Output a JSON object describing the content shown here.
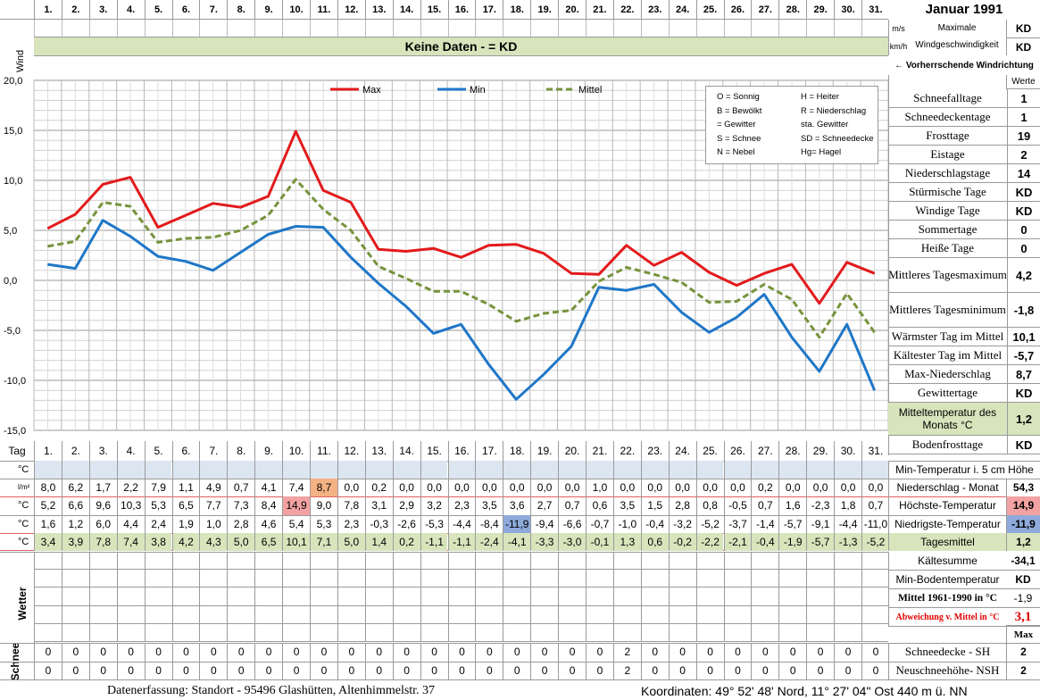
{
  "header": {
    "title": "Januar 1991",
    "days": [
      "1.",
      "2.",
      "3.",
      "4.",
      "5.",
      "6.",
      "7.",
      "8.",
      "9.",
      "10.",
      "11.",
      "12.",
      "13.",
      "14.",
      "15.",
      "16.",
      "17.",
      "18.",
      "19.",
      "20.",
      "21.",
      "22.",
      "23.",
      "24.",
      "25.",
      "26.",
      "27.",
      "28.",
      "29.",
      "30.",
      "31."
    ]
  },
  "wind": {
    "label": "Wind",
    "unit_ms": "m/s",
    "unit_kmh": "km/h",
    "no_data": "Keine Daten -  = KD",
    "max_label": "Maximale Windgeschwindigkeit",
    "max_ms": "KD",
    "max_kmh": "KD",
    "direction_label": "←  Vorherrschende Windrichtung"
  },
  "legend_codes": [
    {
      "code": "O = Sonnig",
      "code2": "H = Heiter"
    },
    {
      "code": "B = Bewölkt",
      "code2": "R = Niederschlag"
    },
    {
      "code": "= Gewitter",
      "code2": "sta. Gewitter"
    },
    {
      "code": "S = Schnee",
      "code2": "SD = Schneedecke"
    },
    {
      "code": "N = Nebel",
      "code2": "Hg= Hagel"
    }
  ],
  "stats_header": "Werte",
  "stats": [
    {
      "label": "Schneefalltage",
      "value": "1"
    },
    {
      "label": "Schneedeckentage",
      "value": "1"
    },
    {
      "label": "Frosttage",
      "value": "19"
    },
    {
      "label": "Eistage",
      "value": "2"
    },
    {
      "label": "Niederschlagstage",
      "value": "14"
    },
    {
      "label": "Stürmische Tage",
      "value": "KD"
    },
    {
      "label": "Windige Tage",
      "value": "KD"
    },
    {
      "label": "Sommertage",
      "value": "0"
    },
    {
      "label": "Heiße Tage",
      "value": "0"
    },
    {
      "label": "Mittleres Tagesmaximum",
      "value": "4,2"
    },
    {
      "label": "Mittleres Tagesminimum",
      "value": "-1,8"
    },
    {
      "label": "Wärmster Tag im Mittel",
      "value": "10,1"
    },
    {
      "label": "Kältester Tag im Mittel",
      "value": "-5,7"
    },
    {
      "label": "Max-Niederschlag",
      "value": "8,7"
    },
    {
      "label": "Gewittertage",
      "value": "KD"
    },
    {
      "label": "Mitteltemperatur des Monats °C",
      "value": "1,2"
    },
    {
      "label": "Bodenfrosttage",
      "value": "KD"
    }
  ],
  "chart_data": {
    "type": "line",
    "categories": [
      "1",
      "2",
      "3",
      "4",
      "5",
      "6",
      "7",
      "8",
      "9",
      "10",
      "11",
      "12",
      "13",
      "14",
      "15",
      "16",
      "17",
      "18",
      "19",
      "20",
      "21",
      "22",
      "23",
      "24",
      "25",
      "26",
      "27",
      "28",
      "29",
      "30",
      "31"
    ],
    "series": [
      {
        "name": "Max",
        "color": "#e31a1c",
        "values": [
          5.2,
          6.6,
          9.6,
          10.3,
          5.3,
          6.5,
          7.7,
          7.3,
          8.4,
          14.9,
          9.0,
          7.8,
          3.1,
          2.9,
          3.2,
          2.3,
          3.5,
          3.6,
          2.7,
          0.7,
          0.6,
          3.5,
          1.5,
          2.8,
          0.8,
          -0.5,
          0.7,
          1.6,
          -2.3,
          1.8,
          0.7
        ]
      },
      {
        "name": "Min",
        "color": "#1f77c8",
        "values": [
          1.6,
          1.2,
          6.0,
          4.4,
          2.4,
          1.9,
          1.0,
          2.8,
          4.6,
          5.4,
          5.3,
          2.3,
          -0.3,
          -2.6,
          -5.3,
          -4.4,
          -8.4,
          -11.9,
          -9.4,
          -6.6,
          -0.7,
          -1.0,
          -0.4,
          -3.2,
          -5.2,
          -3.7,
          -1.4,
          -5.7,
          -9.1,
          -4.4,
          -11.0
        ]
      },
      {
        "name": "Mittel",
        "color": "#77933c",
        "dashed": true,
        "values": [
          3.4,
          3.9,
          7.8,
          7.4,
          3.8,
          4.2,
          4.3,
          5.0,
          6.5,
          10.1,
          7.1,
          5.0,
          1.4,
          0.2,
          -1.1,
          -1.1,
          -2.4,
          -4.1,
          -3.3,
          -3.0,
          -0.1,
          1.3,
          0.6,
          -0.2,
          -2.2,
          -2.1,
          -0.4,
          -1.9,
          -5.7,
          -1.3,
          -5.2
        ]
      }
    ],
    "ylim": [
      -15,
      20
    ],
    "yticks": [
      "20,0",
      "15,0",
      "10,0",
      "5,0",
      "0,0",
      "-5,0",
      "-10,0",
      "-15,0"
    ],
    "ytick_values": [
      20,
      15,
      10,
      5,
      0,
      -5,
      -10,
      -15
    ]
  },
  "table": {
    "tag_label": "Tag",
    "rows": [
      {
        "unit": "°C",
        "label": "Min-Temperatur i. 5 cm Höhe",
        "total": "",
        "values": [
          "",
          "",
          "",
          "",
          "",
          "",
          "",
          "",
          "",
          "",
          "",
          "",
          "",
          "",
          "",
          "",
          "",
          "",
          "",
          "",
          "",
          "",
          "",
          "",
          "",
          "",
          "",
          "",
          "",
          "",
          ""
        ]
      },
      {
        "unit": "l/m²",
        "label": "Niederschlag - Monat",
        "total": "54,3",
        "values": [
          "8,0",
          "6,2",
          "1,7",
          "2,2",
          "7,9",
          "1,1",
          "4,9",
          "0,7",
          "4,1",
          "7,4",
          "8,7",
          "0,0",
          "0,2",
          "0,0",
          "0,0",
          "0,0",
          "0,0",
          "0,0",
          "0,0",
          "0,0",
          "1,0",
          "0,0",
          "0,0",
          "0,0",
          "0,0",
          "0,0",
          "0,2",
          "0,0",
          "0,0",
          "0,0",
          "0,0"
        ]
      },
      {
        "unit": "°C",
        "label": "Höchste-Temperatur",
        "total": "14,9",
        "values": [
          "5,2",
          "6,6",
          "9,6",
          "10,3",
          "5,3",
          "6,5",
          "7,7",
          "7,3",
          "8,4",
          "14,9",
          "9,0",
          "7,8",
          "3,1",
          "2,9",
          "3,2",
          "2,3",
          "3,5",
          "3,6",
          "2,7",
          "0,7",
          "0,6",
          "3,5",
          "1,5",
          "2,8",
          "0,8",
          "-0,5",
          "0,7",
          "1,6",
          "-2,3",
          "1,8",
          "0,7"
        ]
      },
      {
        "unit": "°C",
        "label": "Niedrigste-Temperatur",
        "total": "-11,9",
        "values": [
          "1,6",
          "1,2",
          "6,0",
          "4,4",
          "2,4",
          "1,9",
          "1,0",
          "2,8",
          "4,6",
          "5,4",
          "5,3",
          "2,3",
          "-0,3",
          "-2,6",
          "-5,3",
          "-4,4",
          "-8,4",
          "-11,9",
          "-9,4",
          "-6,6",
          "-0,7",
          "-1,0",
          "-0,4",
          "-3,2",
          "-5,2",
          "-3,7",
          "-1,4",
          "-5,7",
          "-9,1",
          "-4,4",
          "-11,0"
        ]
      },
      {
        "unit": "°C",
        "label": "Tagesmittel",
        "total": "1,2",
        "values": [
          "3,4",
          "3,9",
          "7,8",
          "7,4",
          "3,8",
          "4,2",
          "4,3",
          "5,0",
          "6,5",
          "10,1",
          "7,1",
          "5,0",
          "1,4",
          "0,2",
          "-1,1",
          "-1,1",
          "-2,4",
          "-4,1",
          "-3,3",
          "-3,0",
          "-0,1",
          "1,3",
          "0,6",
          "-0,2",
          "-2,2",
          "-2,1",
          "-0,4",
          "-1,9",
          "-5,7",
          "-1,3",
          "-5,2"
        ]
      }
    ]
  },
  "extra": [
    {
      "label": "Kältesumme",
      "value": "-34,1"
    },
    {
      "label": "Min-Bodentemperatur",
      "value": "KD"
    },
    {
      "label": "Mittel 1961-1990 in °C",
      "value": "-1,9"
    },
    {
      "label": "Abweichung v. Mittel in °C",
      "value": "3,1"
    }
  ],
  "wetter_label": "Wetter",
  "schnee_label": "Schnee",
  "max_label": "Max",
  "snow_rows": [
    {
      "label": "Schneedecke -   SH",
      "max": "2",
      "values": [
        "0",
        "0",
        "0",
        "0",
        "0",
        "0",
        "0",
        "0",
        "0",
        "0",
        "0",
        "0",
        "0",
        "0",
        "0",
        "0",
        "0",
        "0",
        "0",
        "0",
        "0",
        "2",
        "0",
        "0",
        "0",
        "0",
        "0",
        "0",
        "0",
        "0",
        "0"
      ]
    },
    {
      "label": "Neuschneehöhe- NSH",
      "max": "2",
      "values": [
        "0",
        "0",
        "0",
        "0",
        "0",
        "0",
        "0",
        "0",
        "0",
        "0",
        "0",
        "0",
        "0",
        "0",
        "0",
        "0",
        "0",
        "0",
        "0",
        "0",
        "0",
        "2",
        "0",
        "0",
        "0",
        "0",
        "0",
        "0",
        "0",
        "0",
        "0"
      ]
    }
  ],
  "footer": {
    "left": "Datenerfassung:  Standort -   95496  Glashütten, Altenhimmelstr. 37",
    "right": "Koordinaten:  49° 52' 48' Nord,  11° 27' 04\" Ost   440 m ü. NN"
  },
  "colors": {
    "green_band": "#d8e4bc",
    "blue_band": "#dce6f1",
    "max_highlight": "#f2a2a2",
    "precip_highlight": "#f4b183",
    "min_highlight": "#8eaadb"
  }
}
